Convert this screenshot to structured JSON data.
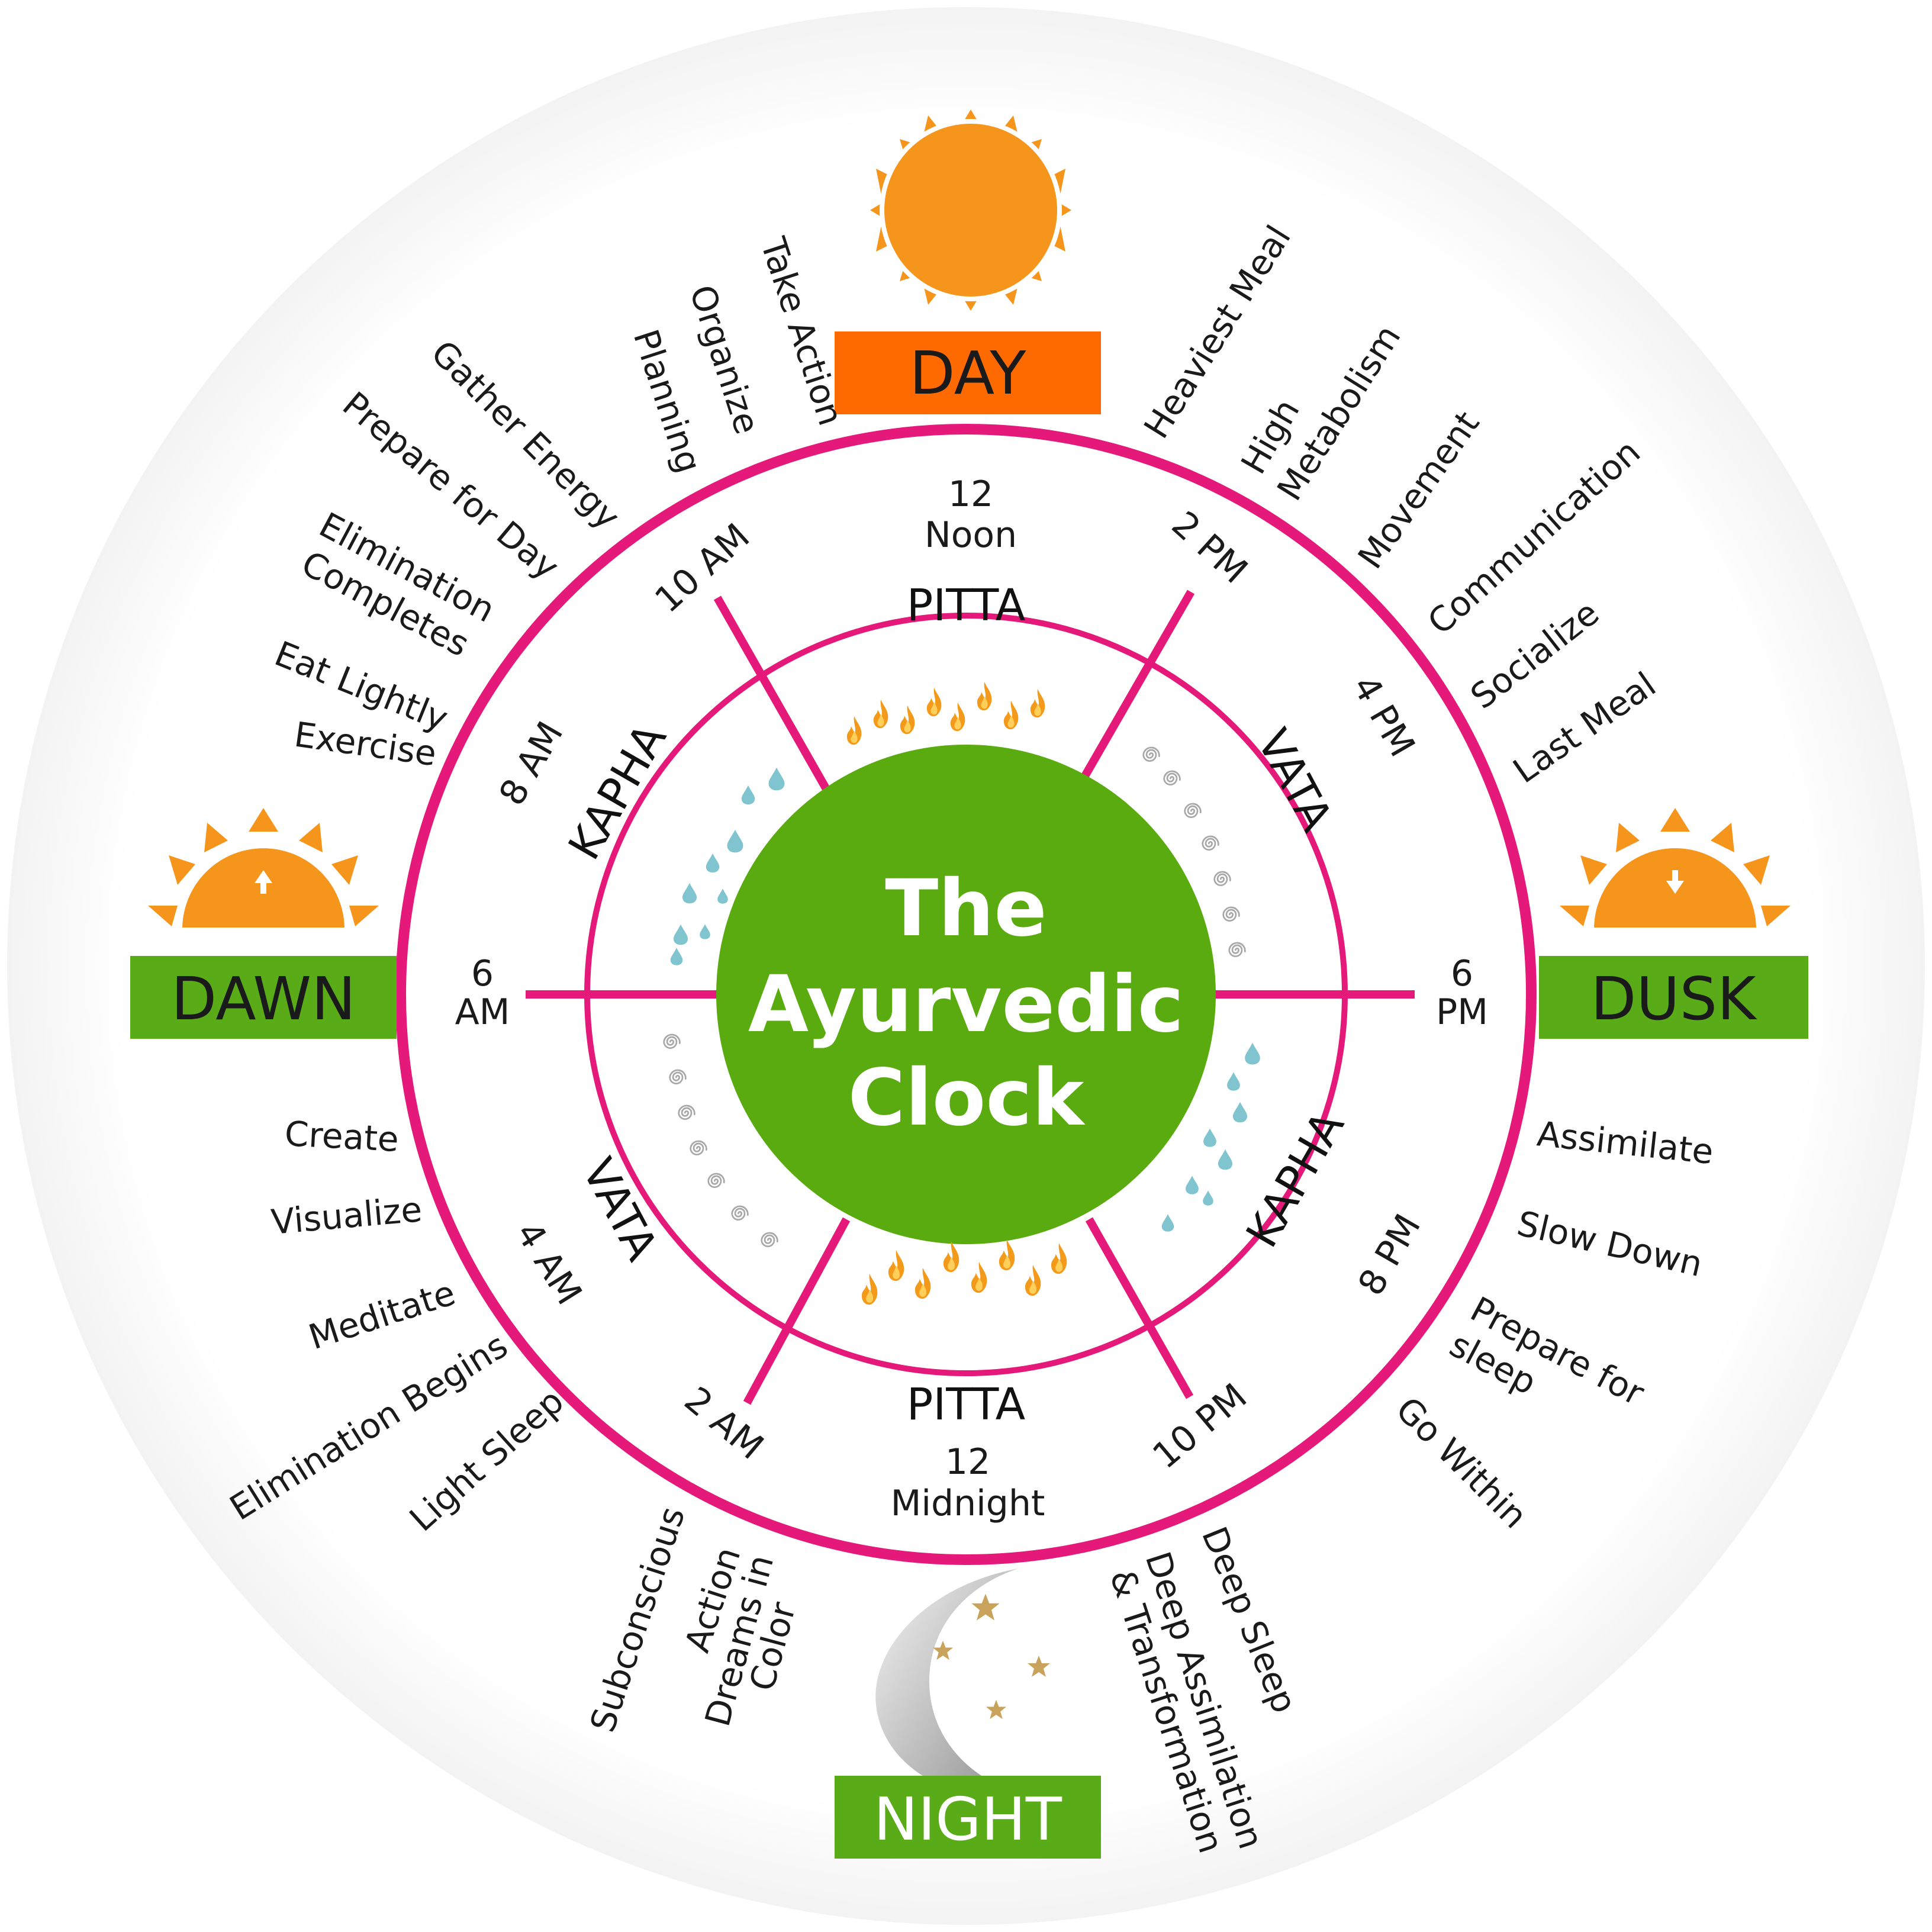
{
  "colors": {
    "ring": "#e5197a",
    "center": "#5aab0f",
    "sun": "#f5951c",
    "day_box": "#ff6a00",
    "green_box": "#5aab18",
    "drop": "#7fc4cf",
    "swirl": "#a7a7a7",
    "flame": "#f39a1a",
    "star": "#c9a35c",
    "moon": "#b8b8b8"
  },
  "center": {
    "line1": "The",
    "line2": "Ayurvedic",
    "line3": "Clock"
  },
  "period_labels": {
    "day": "DAY",
    "dawn": "DAWN",
    "dusk": "DUSK",
    "night": "NIGHT"
  },
  "doshas": {
    "pitta_day": "PITTA",
    "vata_afternoon": "VATA",
    "kapha_evening": "KAPHA",
    "pitta_night": "PITTA",
    "vata_early_morning": "VATA",
    "kapha_morning": "KAPHA"
  },
  "times": {
    "noon_num": "12",
    "noon_word": "Noon",
    "midnight_num": "12",
    "midnight_word": "Midnight",
    "pm2": "2 PM",
    "pm4": "4 PM",
    "pm6_num": "6",
    "pm6_word": "PM",
    "pm8": "8 PM",
    "pm10": "10 PM",
    "am2": "2 AM",
    "am4": "4 AM",
    "am6_num": "6",
    "am6_word": "AM",
    "am8": "8 AM",
    "am10": "10 AM"
  },
  "activities": {
    "take_action": "Take Action",
    "organize": "Organize",
    "planning": "Planning",
    "gather_energy": "Gather Energy",
    "prepare_for_day": "Prepare for Day",
    "elimination": "Elimination",
    "completes": "Completes",
    "eat_lightly": "Eat Lightly",
    "exercise": "Exercise",
    "heaviest_meal": "Heaviest Meal",
    "high": "High",
    "metabolism": "Metabolism",
    "movement": "Movement",
    "communication": "Communication",
    "socialize": "Socialize",
    "last_meal": "Last Meal",
    "assimilate": "Assimilate",
    "slow_down": "Slow Down",
    "prepare_for": "Prepare for",
    "sleep": "sleep",
    "go_within": "Go Within",
    "deep_sleep": "Deep Sleep",
    "deep_assimilation": "Deep Assimilation",
    "and_transformation": "& Transformation",
    "dreams_in_color_1": "Dreams in",
    "dreams_in_color_2": "Color",
    "subconscious": "Subconscious",
    "action": "Action",
    "create": "Create",
    "visualize": "Visualize",
    "meditate": "Meditate",
    "elimination_begins": "Elimination Begins",
    "light_sleep": "Light Sleep"
  }
}
